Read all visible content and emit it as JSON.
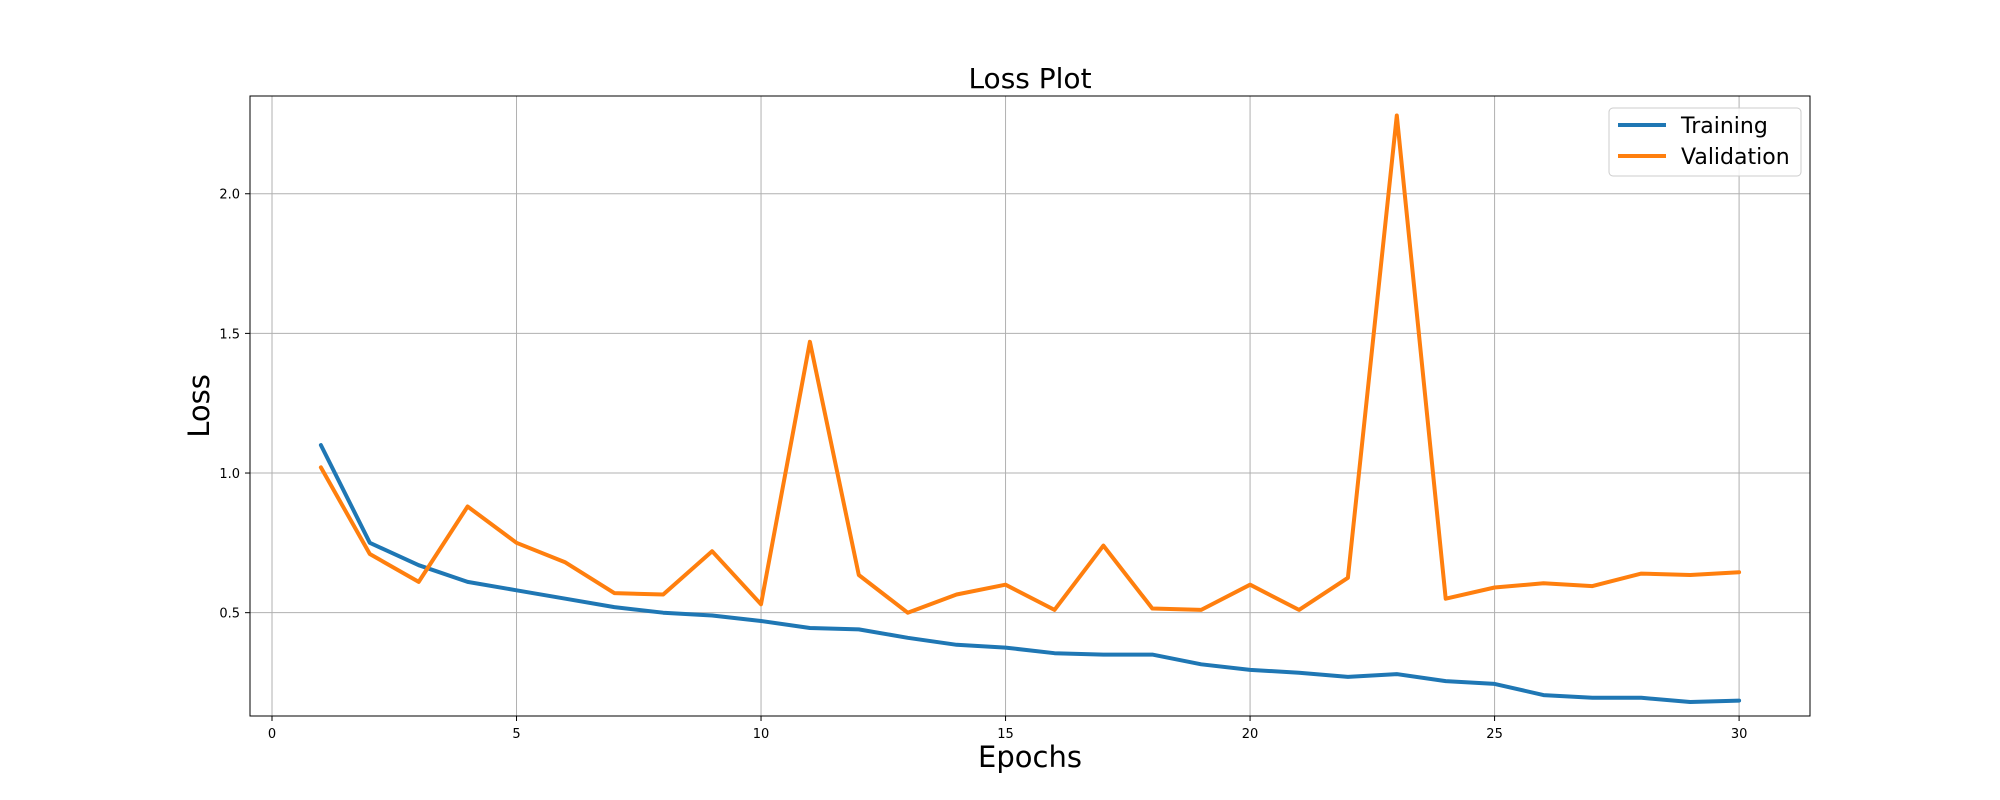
{
  "chart_data": {
    "type": "line",
    "title": "Loss Plot",
    "xlabel": "Epochs",
    "ylabel": "Loss",
    "xlim": [
      -0.45,
      31.45
    ],
    "ylim": [
      0.13,
      2.35
    ],
    "xticks": [
      0,
      5,
      10,
      15,
      20,
      25,
      30
    ],
    "yticks": [
      0.5,
      1.0,
      1.5,
      2.0
    ],
    "xtick_labels": [
      "0",
      "5",
      "10",
      "15",
      "20",
      "25",
      "30"
    ],
    "ytick_labels": [
      "0.5",
      "1.0",
      "1.5",
      "2.0"
    ],
    "grid": true,
    "legend_position": "top-right",
    "x": [
      1,
      2,
      3,
      4,
      5,
      6,
      7,
      8,
      9,
      10,
      11,
      12,
      13,
      14,
      15,
      16,
      17,
      18,
      19,
      20,
      21,
      22,
      23,
      24,
      25,
      26,
      27,
      28,
      29,
      30
    ],
    "series": [
      {
        "name": "Training",
        "color": "#1f77b4",
        "values": [
          1.1,
          0.75,
          0.67,
          0.61,
          0.58,
          0.55,
          0.52,
          0.5,
          0.49,
          0.47,
          0.445,
          0.44,
          0.41,
          0.385,
          0.375,
          0.355,
          0.35,
          0.35,
          0.315,
          0.295,
          0.285,
          0.27,
          0.28,
          0.255,
          0.245,
          0.205,
          0.195,
          0.195,
          0.18,
          0.185
        ]
      },
      {
        "name": "Validation",
        "color": "#ff7f0e",
        "values": [
          1.02,
          0.71,
          0.61,
          0.88,
          0.75,
          0.68,
          0.57,
          0.565,
          0.72,
          0.53,
          1.47,
          0.635,
          0.5,
          0.565,
          0.6,
          0.51,
          0.74,
          0.515,
          0.51,
          0.6,
          0.51,
          0.625,
          2.28,
          0.55,
          0.59,
          0.605,
          0.595,
          0.64,
          0.635,
          0.645
        ]
      }
    ]
  }
}
